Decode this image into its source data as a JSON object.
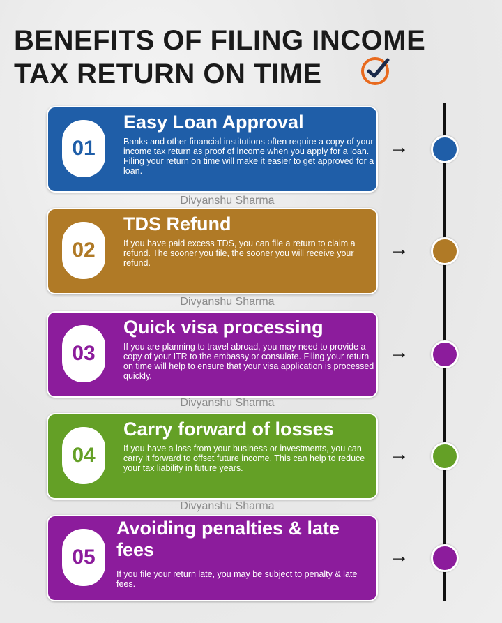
{
  "header": {
    "line1": "BENEFITS OF FILING INCOME",
    "line2": "TAX RETURN ON TIME",
    "icon": "clock-check-icon",
    "accent": "#e86a1e"
  },
  "watermark": "Divyanshu Sharma",
  "items": [
    {
      "number": "01",
      "title": "Easy Loan Approval",
      "body": "Banks and other financial institutions often require a copy of your income tax return as proof of income when you apply for a loan. Filing your return on time will make it easier to get approved for a loan.",
      "color": "#1f5ea8"
    },
    {
      "number": "02",
      "title": "TDS Refund",
      "body": "If you have paid excess TDS, you can file a return to claim a refund. The sooner you file, the sooner you will receive your refund.",
      "color": "#b07a26"
    },
    {
      "number": "03",
      "title": "Quick visa processing",
      "body": "If you are planning to travel abroad, you may need to provide a copy of your ITR to the embassy or consulate. Filing your return on time will help to ensure that your visa application is processed quickly.",
      "color": "#8c1c9c"
    },
    {
      "number": "04",
      "title": "Carry forward of losses",
      "body": "If you have a loss from your business or investments, you can carry it forward to offset future income. This can help to reduce your tax liability in future years.",
      "color": "#64a026"
    },
    {
      "number": "05",
      "title": "Avoiding penalties & late fees",
      "body": "If you file your return late, you may be subject to penalty & late fees.",
      "color": "#8c1c9c"
    }
  ]
}
